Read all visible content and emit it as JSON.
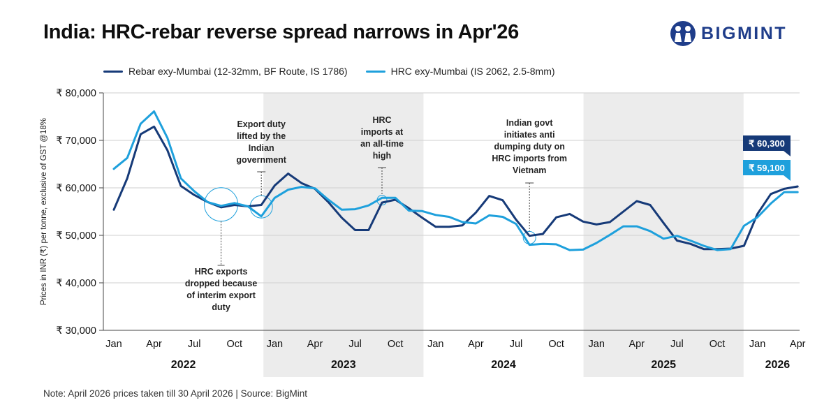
{
  "title": "India: HRC-rebar reverse spread narrows in Apr'26",
  "brand": {
    "name": "BIGMINT",
    "color": "#1f3d8a"
  },
  "footnote": "Note: April 2026 prices taken till  30 April 2026  |  Source: BigMint",
  "chart_data": {
    "type": "line",
    "ylabel": "Prices in INR (₹) per tonne, exclusive of GST @18%",
    "ylim": [
      30000,
      80000
    ],
    "yticks": [
      30000,
      40000,
      50000,
      60000,
      70000,
      80000
    ],
    "ytick_labels": [
      "₹ 30,000",
      "₹ 40,000",
      "₹ 50,000",
      "₹ 60,000",
      "₹ 70,000",
      "₹ 80,000"
    ],
    "x": [
      "Jan 2022",
      "Feb 2022",
      "Mar 2022",
      "Apr 2022",
      "May 2022",
      "Jun 2022",
      "Jul 2022",
      "Aug 2022",
      "Sep 2022",
      "Oct 2022",
      "Nov 2022",
      "Dec 2022",
      "Jan 2023",
      "Feb 2023",
      "Mar 2023",
      "Apr 2023",
      "May 2023",
      "Jun 2023",
      "Jul 2023",
      "Aug 2023",
      "Sep 2023",
      "Oct 2023",
      "Nov 2023",
      "Dec 2023",
      "Jan 2024",
      "Feb 2024",
      "Mar 2024",
      "Apr 2024",
      "May 2024",
      "Jun 2024",
      "Jul 2024",
      "Aug 2024",
      "Sep 2024",
      "Oct 2024",
      "Nov 2024",
      "Dec 2024",
      "Jan 2025",
      "Feb 2025",
      "Mar 2025",
      "Apr 2025",
      "May 2025",
      "Jun 2025",
      "Jul 2025",
      "Aug 2025",
      "Sep 2025",
      "Oct 2025",
      "Nov 2025",
      "Dec 2025",
      "Jan 2026",
      "Feb 2026",
      "Mar 2026",
      "Apr 2026"
    ],
    "xtick_labels": [
      "Jan",
      "Apr",
      "Jul",
      "Oct",
      "Jan",
      "Apr",
      "Jul",
      "Oct",
      "Jan",
      "Apr",
      "Jul",
      "Oct",
      "Jan",
      "Apr",
      "Jul",
      "Oct",
      "Jan",
      "Apr"
    ],
    "years": [
      "2022",
      "2023",
      "2024",
      "2025",
      "2026"
    ],
    "shaded_years": [
      "2023",
      "2025"
    ],
    "grid": "horizontal",
    "legend_position": "top",
    "series": [
      {
        "name": "Rebar exy-Mumbai (12-32mm, BF Route, IS 1786)",
        "color": "#163a78",
        "values": [
          55400,
          62000,
          71300,
          72900,
          67900,
          60400,
          58500,
          57000,
          55900,
          56400,
          56100,
          56400,
          60500,
          63000,
          61000,
          59800,
          57000,
          53700,
          51100,
          51100,
          56900,
          57500,
          55700,
          53700,
          51800,
          51800,
          52100,
          54800,
          58300,
          57400,
          53300,
          49900,
          50300,
          53800,
          54500,
          52900,
          52300,
          52800,
          55000,
          57200,
          56400,
          52600,
          48900,
          48200,
          47100,
          47100,
          47200,
          47800,
          54500,
          58700,
          59800,
          60300
        ]
      },
      {
        "name": "HRC exy-Mumbai (IS 2062, 2.5-8mm)",
        "color": "#1ea0dc",
        "values": [
          64000,
          66300,
          73500,
          76100,
          70500,
          62000,
          59300,
          57000,
          56200,
          56800,
          56100,
          54000,
          57900,
          59600,
          60200,
          59900,
          57500,
          55400,
          55500,
          56300,
          57900,
          57900,
          55200,
          55100,
          54300,
          53900,
          52800,
          52500,
          54200,
          53900,
          52400,
          48000,
          48200,
          48100,
          46900,
          47000,
          48400,
          50100,
          51900,
          51900,
          50900,
          49300,
          49900,
          48900,
          47800,
          46900,
          47100,
          52000,
          53800,
          56700,
          59100,
          59100
        ]
      }
    ],
    "callouts": [
      {
        "series": "Rebar exy-Mumbai (12-32mm, BF Route, IS 1786)",
        "label": "₹ 60,300",
        "color": "#163a78"
      },
      {
        "series": "HRC exy-Mumbai (IS 2062, 2.5-8mm)",
        "label": "₹ 59,100",
        "color": "#1ea0dc"
      }
    ],
    "annotations": [
      {
        "lines": [
          "HRC exports",
          "dropped because",
          "of interim export",
          "duty"
        ]
      },
      {
        "lines": [
          "Export duty",
          "lifted by the",
          "Indian",
          "government"
        ]
      },
      {
        "lines": [
          "HRC",
          "imports at",
          "an all-time",
          "high"
        ]
      },
      {
        "lines": [
          "Indian govt",
          "initiates anti",
          "dumping duty on",
          "HRC imports from",
          "Vietnam"
        ]
      }
    ]
  }
}
